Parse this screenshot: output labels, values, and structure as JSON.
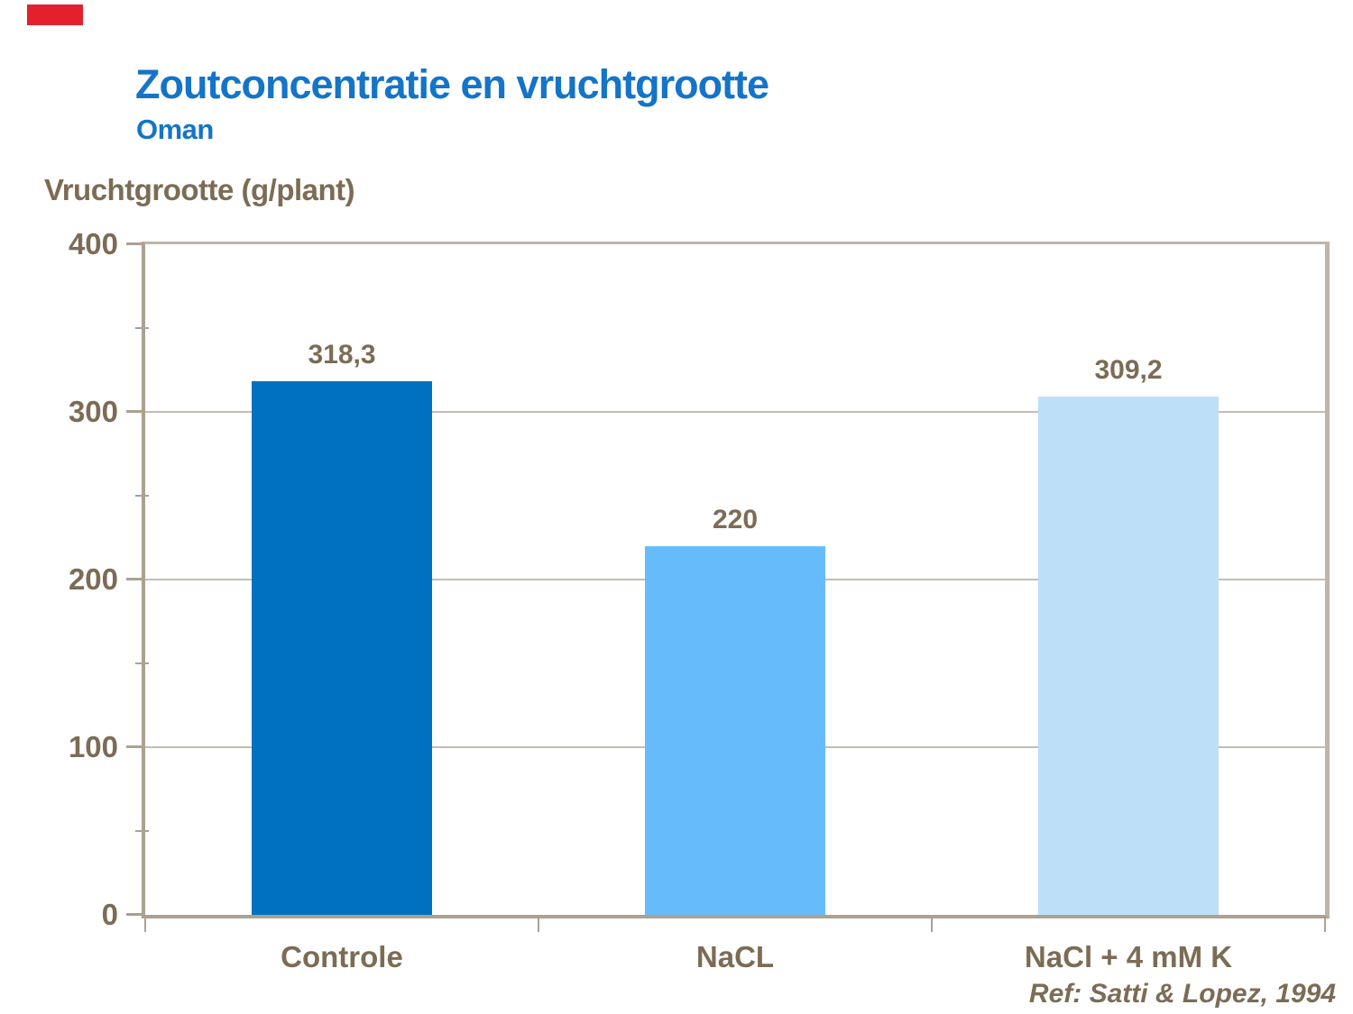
{
  "colors": {
    "logo_red": "#E4202C",
    "title_blue": "#1474C8",
    "text_brown": "#7C6C55",
    "axis_line": "#ACA190",
    "plot_border": "#BEB4A8",
    "gridline": "#C6BDB0"
  },
  "header": {
    "title": "Zoutconcentratie en vruchtgrootte",
    "subtitle": "Oman"
  },
  "footer": {
    "reference": "Ref: Satti & Lopez, 1994"
  },
  "chart_data": {
    "type": "bar",
    "title": "Zoutconcentratie en vruchtgrootte",
    "subtitle": "Oman",
    "ylabel": "Vruchtgrootte (g/plant)",
    "xlabel": "",
    "categories": [
      "Controle",
      "NaCL",
      "NaCl + 4 mM K"
    ],
    "values": [
      318.3,
      220,
      309.2
    ],
    "value_labels": [
      "318,3",
      "220",
      "309,2"
    ],
    "bar_colors": [
      "#0070C0",
      "#66BCFB",
      "#BDDFF8"
    ],
    "ylim": [
      0,
      400
    ],
    "yticks": [
      0,
      100,
      200,
      300,
      400
    ],
    "ytick_minor_interval": 50,
    "grid": true,
    "legend": null,
    "annotation": "Ref: Satti & Lopez, 1994"
  }
}
